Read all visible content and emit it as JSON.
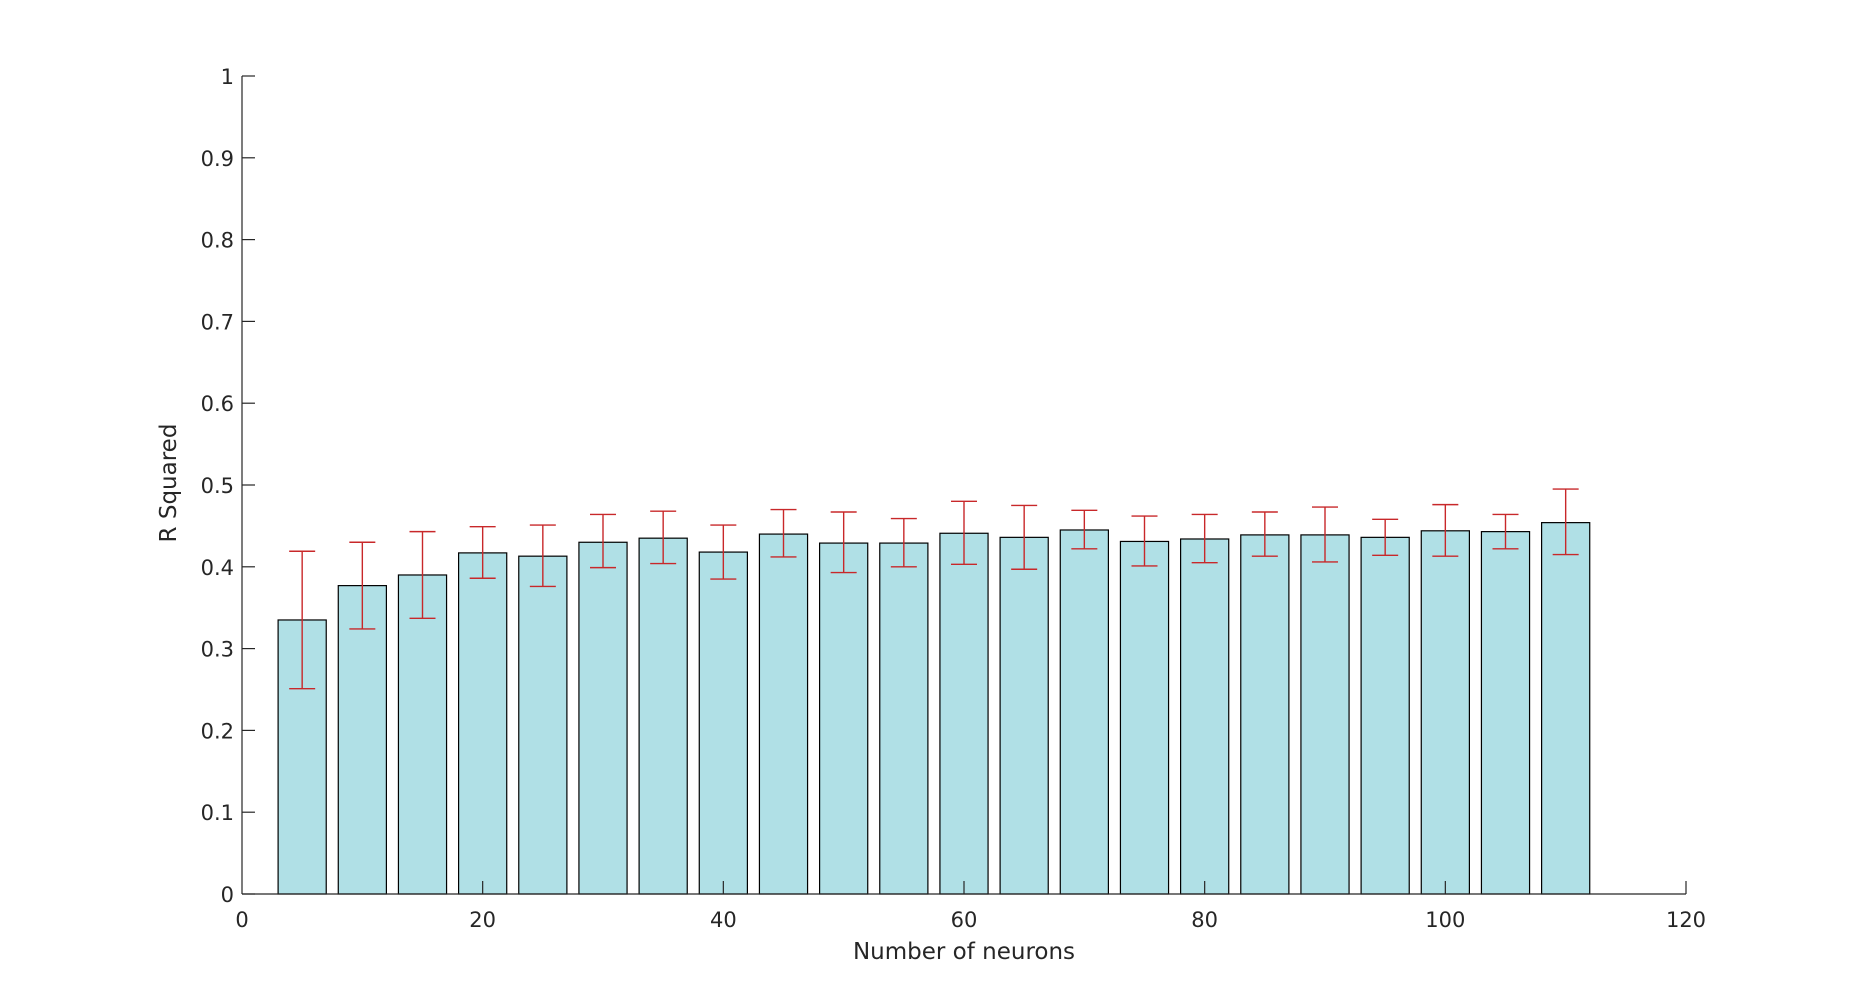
{
  "chart_data": {
    "type": "bar",
    "title": "",
    "xlabel": "Number of neurons",
    "ylabel": "R Squared",
    "xlim": [
      0,
      120
    ],
    "ylim": [
      0,
      1
    ],
    "x_ticks": [
      0,
      20,
      40,
      60,
      80,
      100,
      120
    ],
    "y_ticks": [
      0,
      0.1,
      0.2,
      0.3,
      0.4,
      0.5,
      0.6,
      0.7,
      0.8,
      0.9,
      1
    ],
    "x_tick_labels": [
      "0",
      "20",
      "40",
      "60",
      "80",
      "100",
      "120"
    ],
    "y_tick_labels": [
      "0",
      "0.1",
      "0.2",
      "0.3",
      "0.4",
      "0.5",
      "0.6",
      "0.7",
      "0.8",
      "0.9",
      "1"
    ],
    "grid": false,
    "bar_width": 4,
    "bar_color": "#b0e0e6",
    "bar_edge_color": "#000000",
    "errorbar_color": "#c8282a",
    "x": [
      5,
      10,
      15,
      20,
      25,
      30,
      35,
      40,
      45,
      50,
      55,
      60,
      65,
      70,
      75,
      80,
      85,
      90,
      95,
      100,
      105,
      110
    ],
    "values": [
      0.335,
      0.377,
      0.39,
      0.417,
      0.413,
      0.43,
      0.435,
      0.418,
      0.44,
      0.429,
      0.429,
      0.441,
      0.436,
      0.445,
      0.431,
      0.434,
      0.439,
      0.439,
      0.436,
      0.444,
      0.443,
      0.454
    ],
    "error_low": [
      0.251,
      0.324,
      0.337,
      0.386,
      0.376,
      0.399,
      0.404,
      0.385,
      0.412,
      0.393,
      0.4,
      0.403,
      0.397,
      0.422,
      0.401,
      0.405,
      0.413,
      0.406,
      0.414,
      0.413,
      0.422,
      0.415
    ],
    "error_high": [
      0.419,
      0.43,
      0.443,
      0.449,
      0.451,
      0.464,
      0.468,
      0.451,
      0.47,
      0.467,
      0.459,
      0.48,
      0.475,
      0.469,
      0.462,
      0.464,
      0.467,
      0.473,
      0.458,
      0.476,
      0.464,
      0.495
    ]
  }
}
